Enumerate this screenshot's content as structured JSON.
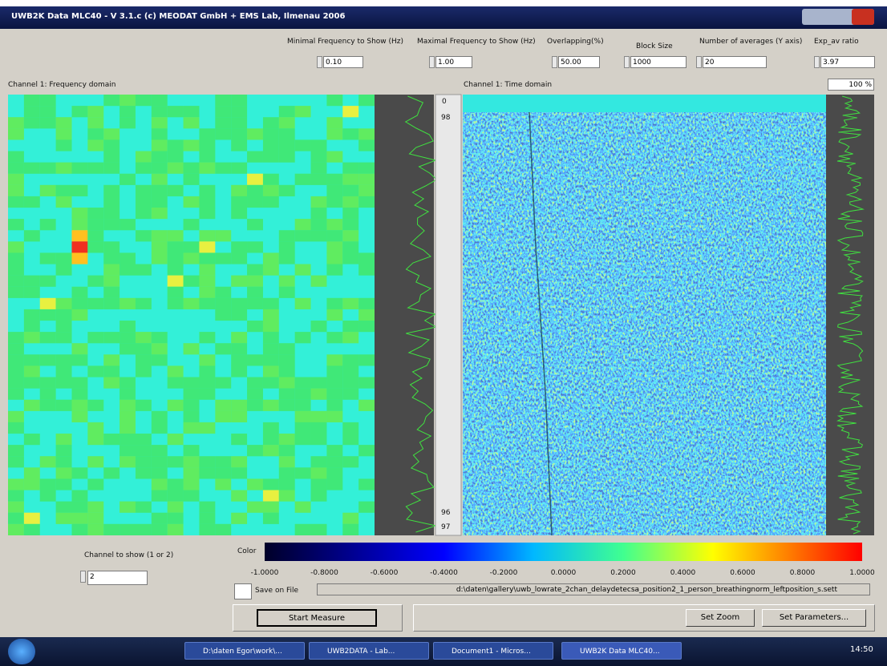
{
  "window": {
    "title": "UWB2K Data MLC40 - V 3.1.c (c) MEODAT GmbH + EMS Lab, Ilmenau 2006"
  },
  "parameters": [
    {
      "label": "Minimal Frequency to Show (Hz)",
      "value": "0.10"
    },
    {
      "label": "Maximal Frequency to Show (Hz)",
      "value": "1.00"
    },
    {
      "label": "Overlapping(%)",
      "value": "50.00"
    },
    {
      "label": "Block Size",
      "value": "1000"
    },
    {
      "label": "Number of averages (Y axis)",
      "value": "20"
    },
    {
      "label": "Exp_av ratio",
      "value": "3.97"
    }
  ],
  "panels": {
    "frequency": "Channel 1: Frequency domain",
    "time": "Channel 1: Time domain",
    "percent": "100 %"
  },
  "scroll_labels": [
    "0",
    "98",
    "96",
    "97"
  ],
  "channel": {
    "label": "Channel to show (1 or 2)",
    "value": "2"
  },
  "colorbar": {
    "label": "Color",
    "ticks": [
      "-1.0000",
      "-0.8000",
      "-0.6000",
      "-0.4000",
      "-0.2000",
      "0.0000",
      "0.2000",
      "0.4000",
      "0.6000",
      "0.8000",
      "1.0000"
    ]
  },
  "save": {
    "label": "Save on File",
    "path": "d:\\daten\\gallery\\uwb_lowrate_2chan_delaydetecsa_position2_1_person_breathingnorm_leftposition_s.sett"
  },
  "buttons": [
    "Start Measure",
    "Set Zoom",
    "Set Parameters..."
  ],
  "taskbar": {
    "items": [
      "D:\\daten Egor\\work\\...",
      "UWB2DATA - Lab...",
      "Document1 - Micros...",
      "UWB2K Data MLC40..."
    ],
    "clock": "14:50"
  }
}
